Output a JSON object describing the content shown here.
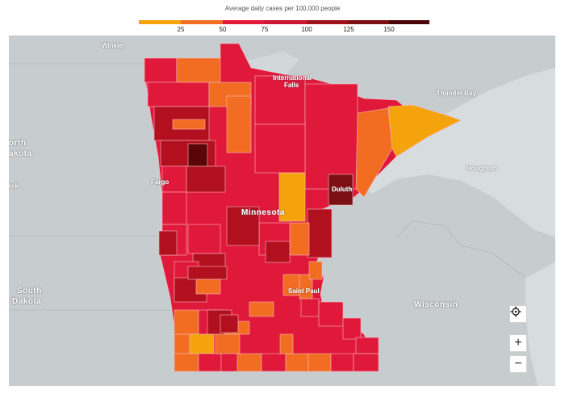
{
  "legend": {
    "title": "Average daily cases per 100,000 people",
    "ticks": [
      "25",
      "50",
      "75",
      "100",
      "125",
      "150"
    ],
    "colors": [
      "#f5a30c",
      "#f26c22",
      "#e5193a",
      "#cc1535",
      "#9e1119",
      "#7b0f12",
      "#4a0508"
    ]
  },
  "labels": {
    "winkler": "Winkler",
    "north_dakota_1": "orth",
    "north_dakota_2": "akota",
    "fargo": "Fargo",
    "rck": "rck",
    "international_falls_1": "International",
    "international_falls_2": "Falls",
    "thunder_bay": "Thunder Bay",
    "houghton": "Houghton",
    "duluth": "Duluth",
    "minnesota": "Minnesota",
    "saint_paul": "Saint Paul",
    "south_dakota_1": "South",
    "south_dakota_2": "Dakota",
    "wisconsin": "Wisconsin"
  },
  "controls": {
    "zoom_in": "+",
    "zoom_out": "−"
  },
  "colors": {
    "land": "#c7ccce",
    "water": "#d7dcde",
    "base_red": "#e0183a"
  }
}
